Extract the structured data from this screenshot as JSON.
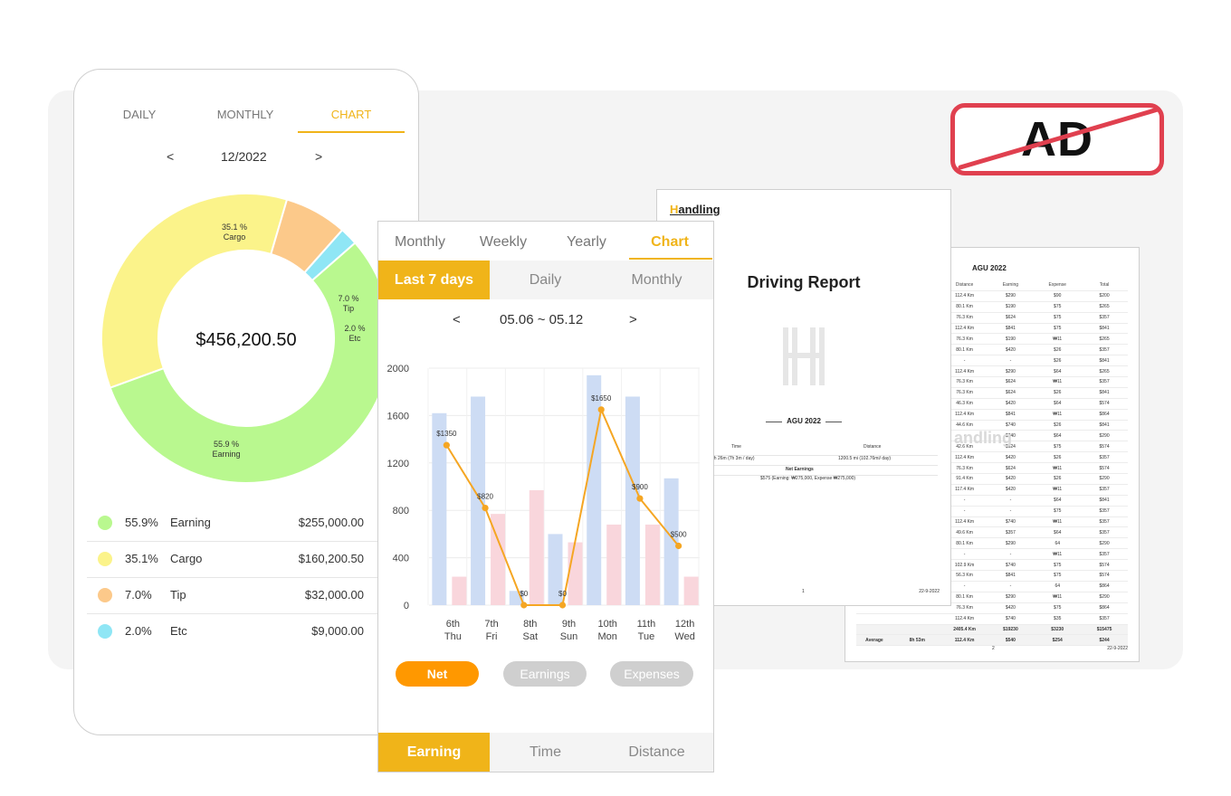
{
  "colors": {
    "accent": "#f0b419",
    "orange": "#ff9800",
    "earning": "#b9f88f",
    "cargo": "#fbf38a",
    "tip": "#fcc98a",
    "etc": "#8fe6f5",
    "ad_red": "#e0404f"
  },
  "ad_badge": {
    "label": "AD"
  },
  "left_phone": {
    "tabs": [
      "DAILY",
      "MONTHLY",
      "CHART"
    ],
    "active_tab": "CHART",
    "month_nav": {
      "prev": "<",
      "label": "12/2022",
      "next": ">"
    },
    "donut": {
      "center_total": "$456,200.50",
      "slice_labels": [
        {
          "pct": "35.1 %",
          "name": "Cargo"
        },
        {
          "pct": "7.0 %",
          "name": "Tip"
        },
        {
          "pct": "2.0 %",
          "name": "Etc"
        },
        {
          "pct": "55.9 %",
          "name": "Earning"
        }
      ]
    },
    "legend": [
      {
        "pct": "55.9%",
        "name": "Earning",
        "amount": "$255,000.00",
        "color": "#b9f88f"
      },
      {
        "pct": "35.1%",
        "name": "Cargo",
        "amount": "$160,200.50",
        "color": "#fbf38a"
      },
      {
        "pct": "7.0%",
        "name": "Tip",
        "amount": "$32,000.00",
        "color": "#fcc98a"
      },
      {
        "pct": "2.0%",
        "name": "Etc",
        "amount": "$9,000.00",
        "color": "#8fe6f5"
      }
    ]
  },
  "middle_phone": {
    "tabs": [
      "Monthly",
      "Weekly",
      "Yearly",
      "Chart"
    ],
    "active_tab": "Chart",
    "sub_tabs": [
      "Last 7 days",
      "Daily",
      "Monthly"
    ],
    "active_sub_tab": "Last 7 days",
    "range_nav": {
      "prev": "<",
      "label": "05.06 ~ 05.12",
      "next": ">"
    },
    "pills": [
      "Net",
      "Earnings",
      "Expenses"
    ],
    "active_pill": "Net",
    "bottom_tabs": [
      "Earning",
      "Time",
      "Distance"
    ],
    "active_bottom_tab": "Earning"
  },
  "chart_data": {
    "type": "bar",
    "categories": [
      [
        "6th",
        "Thu"
      ],
      [
        "7th",
        "Fri"
      ],
      [
        "8th",
        "Sat"
      ],
      [
        "9th",
        "Sun"
      ],
      [
        "10th",
        "Mon"
      ],
      [
        "11th",
        "Tue"
      ],
      [
        "12th",
        "Wed"
      ]
    ],
    "series": [
      {
        "name": "Earnings",
        "kind": "bar",
        "color": "#cddcf4",
        "values": [
          1620,
          1760,
          120,
          600,
          1940,
          1760,
          1070
        ]
      },
      {
        "name": "Expenses",
        "kind": "bar",
        "color": "#f9d6dc",
        "values": [
          240,
          770,
          970,
          530,
          680,
          680,
          240
        ]
      },
      {
        "name": "Net",
        "kind": "line",
        "color": "#f5a623",
        "values": [
          1350,
          820,
          0,
          0,
          1650,
          900,
          500
        ],
        "labels": [
          "$1350",
          "$820",
          "$0",
          "$0",
          "$1650",
          "$900",
          "$500"
        ]
      }
    ],
    "yticks": [
      "0",
      "400",
      "800",
      "1200",
      "1600",
      "2000"
    ],
    "ylim": [
      0,
      2000
    ]
  },
  "report_front": {
    "logo": "Handling",
    "logo_initial": "H",
    "logo_rest": "andling",
    "title": "Driving Report",
    "month": "AGU 2022",
    "summary": {
      "time_header": "Time",
      "distance_header": "Distance",
      "time_value": "0h 26m    (7h 3m / day)",
      "distance_value": "1200.5 mi    (102.76mi/ day)",
      "net_header": "Net Earnings",
      "net_value": "$575    (Earning: ₩275,000, Expense ₩275,000)"
    },
    "page": "1",
    "date": "22-9-2022"
  },
  "report_back": {
    "month": "AGU 2022",
    "watermark": "andling",
    "headers": [
      "",
      "",
      "Distance",
      "Earning",
      "Expense",
      "Total"
    ],
    "rows": [
      [
        "112.4 Km",
        "$290",
        "$90",
        "$200"
      ],
      [
        "80.1 Km",
        "$190",
        "$75",
        "$265"
      ],
      [
        "76.3 Km",
        "$624",
        "$75",
        "$357"
      ],
      [
        "112.4 Km",
        "$841",
        "$75",
        "$841"
      ],
      [
        "76.3 Km",
        "$190",
        "₩11",
        "$265"
      ],
      [
        "80.1 Km",
        "$420",
        "$26",
        "$357"
      ],
      [
        "-",
        "-",
        "$26",
        "$841"
      ],
      [
        "112.4 Km",
        "$290",
        "$64",
        "$265"
      ],
      [
        "76.3 Km",
        "$624",
        "₩11",
        "$357"
      ],
      [
        "76.3 Km",
        "$624",
        "$26",
        "$841"
      ],
      [
        "46.3 Km",
        "$420",
        "$64",
        "$574"
      ],
      [
        "112.4 Km",
        "$841",
        "₩11",
        "$864"
      ],
      [
        "44.6 Km",
        "$740",
        "$26",
        "$841"
      ],
      [
        "-",
        "$740",
        "$64",
        "$290"
      ],
      [
        "42.6 Km",
        "$624",
        "$75",
        "$574"
      ],
      [
        "112.4 Km",
        "$420",
        "$26",
        "$357"
      ],
      [
        "76.3 Km",
        "$624",
        "₩11",
        "$574"
      ],
      [
        "91.4 Km",
        "$420",
        "$26",
        "$290"
      ],
      [
        "117.4 Km",
        "$420",
        "₩11",
        "$357"
      ],
      [
        "-",
        "-",
        "$64",
        "$841"
      ],
      [
        "-",
        "-",
        "$75",
        "$357"
      ],
      [
        "112.4 Km",
        "$740",
        "₩11",
        "$357"
      ],
      [
        "49.6 Km",
        "$357",
        "$64",
        "$357"
      ],
      [
        "80.1 Km",
        "$290",
        "64",
        "$290"
      ],
      [
        "-",
        "-",
        "₩11",
        "$357"
      ],
      [
        "102.9 Km",
        "$740",
        "$75",
        "$574"
      ],
      [
        "56.3 Km",
        "$841",
        "$75",
        "$574"
      ],
      [
        "-",
        "-",
        "64",
        "$864"
      ],
      [
        "80.1 Km",
        "$290",
        "₩11",
        "$290"
      ],
      [
        "76.3 Km",
        "$420",
        "$75",
        "$864"
      ],
      [
        "112.4 Km",
        "$740",
        "$35",
        "$357"
      ]
    ],
    "total_row": [
      "",
      "",
      "2405.4 Km",
      "$19230",
      "$3230",
      "$15475"
    ],
    "average_row": [
      "Average",
      "8h 53m",
      "112.4 Km",
      "$540",
      "$254",
      "$244"
    ],
    "page": "2",
    "date": "22-9-2022"
  }
}
